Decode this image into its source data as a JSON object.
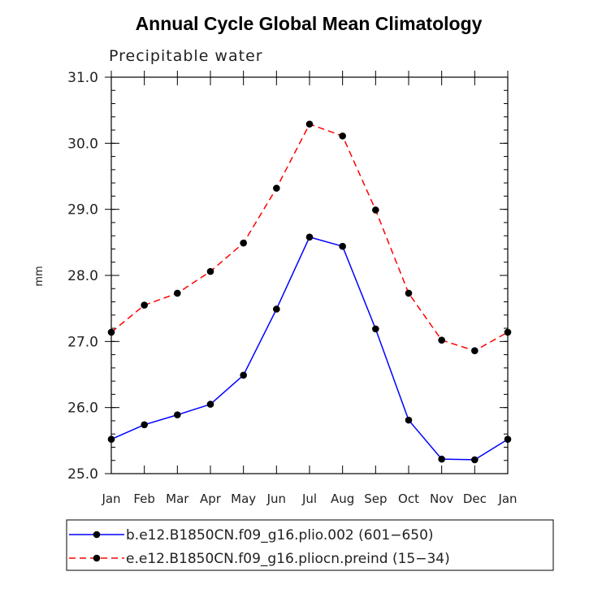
{
  "chart_data": {
    "type": "line",
    "title": "Annual Cycle Global Mean Climatology",
    "subtitle": "Precipitable water",
    "xlabel": "",
    "ylabel": "mm",
    "ylim": [
      25.0,
      31.0
    ],
    "y_ticks": [
      "25.0",
      "26.0",
      "27.0",
      "28.0",
      "29.0",
      "30.0",
      "31.0"
    ],
    "categories": [
      "Jan",
      "Feb",
      "Mar",
      "Apr",
      "May",
      "Jun",
      "Jul",
      "Aug",
      "Sep",
      "Oct",
      "Nov",
      "Dec",
      "Jan"
    ],
    "series": [
      {
        "name": "b.e12.B1850CN.f09_g16.plio.002 (601−650)",
        "color": "#0000ff",
        "dashed": false,
        "values": [
          25.52,
          25.74,
          25.89,
          26.05,
          26.49,
          27.49,
          28.58,
          28.44,
          27.19,
          25.81,
          25.22,
          25.21,
          25.52
        ]
      },
      {
        "name": "e.e12.B1850CN.f09_g16.pliocn.preind (15−34)",
        "color": "#ff0000",
        "dashed": true,
        "values": [
          27.14,
          27.55,
          27.73,
          28.06,
          28.49,
          29.32,
          30.29,
          30.11,
          28.99,
          27.73,
          27.02,
          26.86,
          27.14
        ]
      }
    ]
  }
}
